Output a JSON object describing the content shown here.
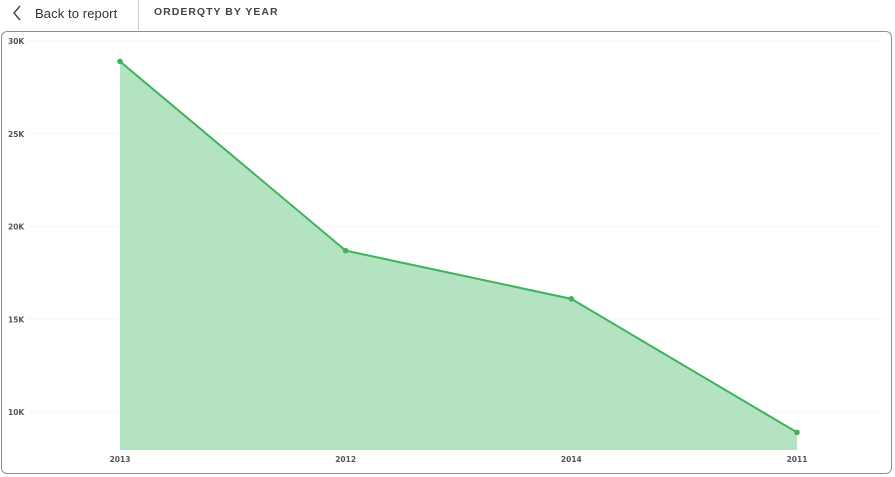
{
  "header": {
    "back_label": "Back to report",
    "title": "ORDERQTY BY YEAR"
  },
  "icons": {
    "back": "chevron-left-icon"
  },
  "colors": {
    "line": "#3cb35c",
    "area": "#b4e3c1",
    "grid": "#dcdcdc"
  },
  "chart_data": {
    "type": "area",
    "categories": [
      "2013",
      "2012",
      "2014",
      "2011"
    ],
    "series": [
      {
        "values": [
          28900,
          18700,
          16100,
          8900
        ]
      }
    ],
    "ylim": [
      8000,
      30000
    ],
    "yticks": [
      10000,
      15000,
      20000,
      25000,
      30000
    ],
    "ytick_labels": [
      "10K",
      "15K",
      "20K",
      "25K",
      "30K"
    ],
    "grid": true,
    "legend": "none"
  }
}
